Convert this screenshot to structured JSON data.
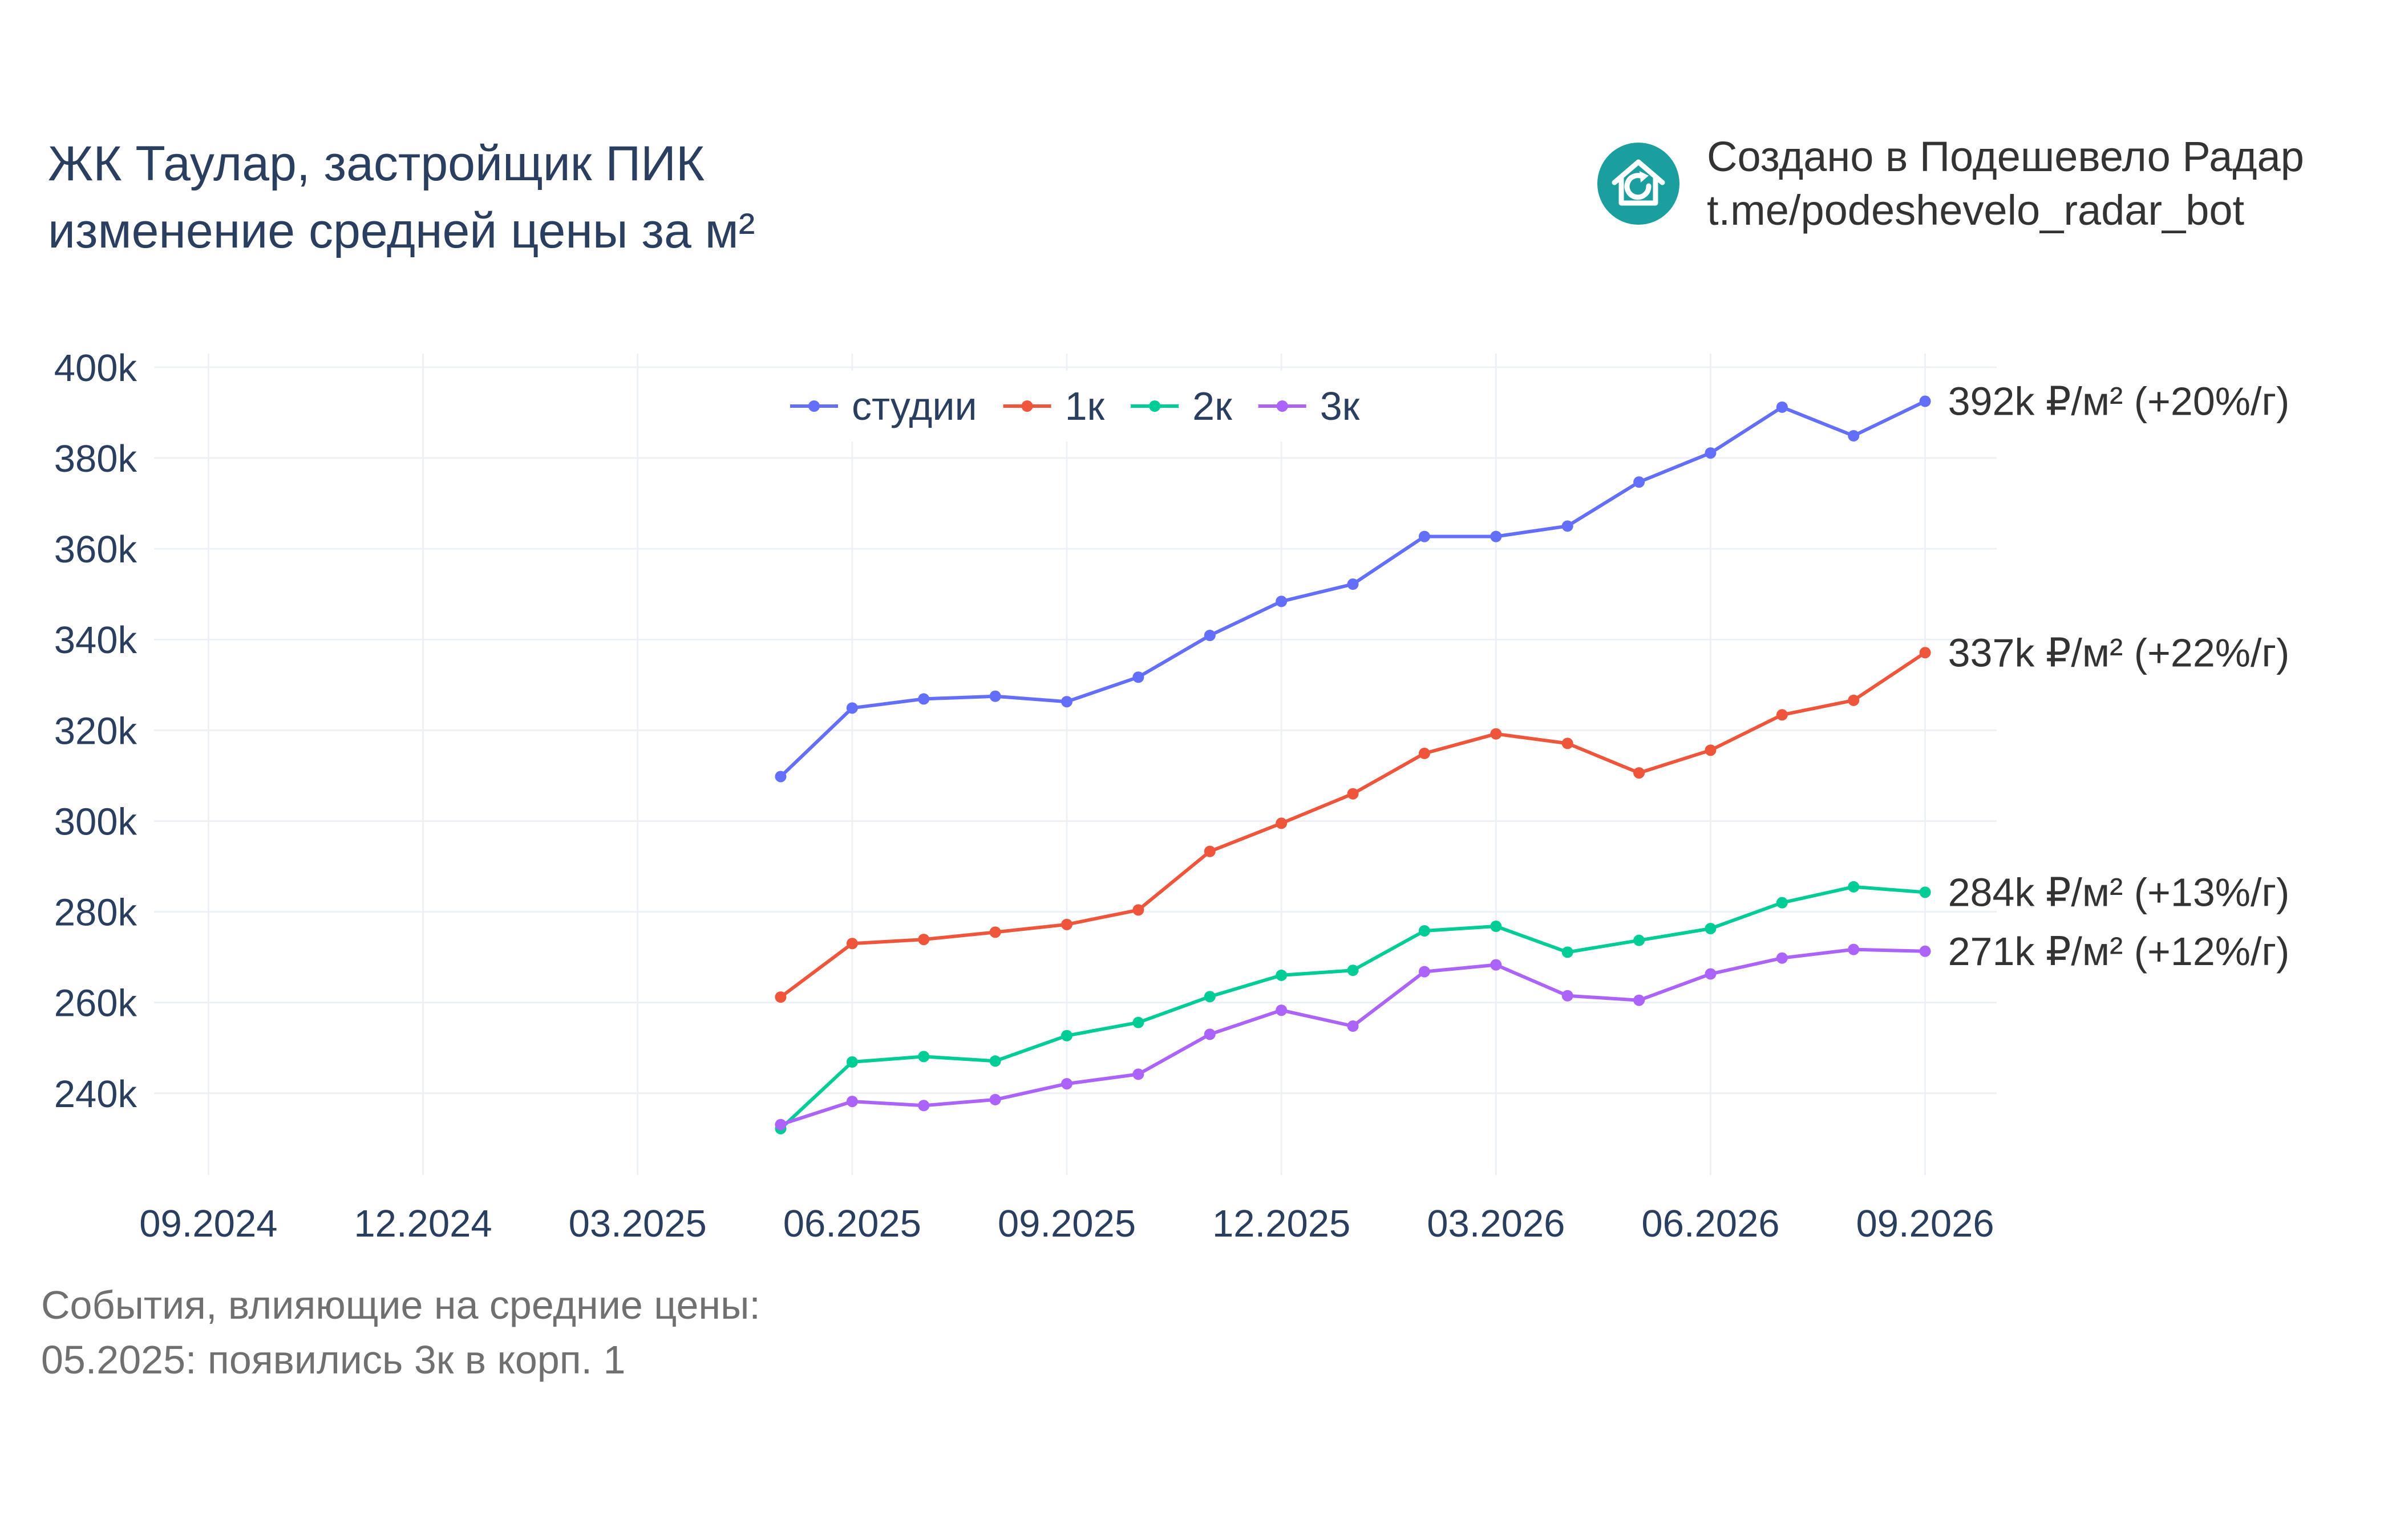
{
  "header": {
    "title_line1": "ЖК Таулар, застройщик ПИК",
    "title_line2": "изменение средней цены за м²"
  },
  "brand": {
    "line1": "Создано в Подешевело Радар",
    "line2": "t.me/podeshevelo_radar_bot",
    "logo_icon": "house-refresh-icon",
    "logo_color": "#1a9e9e"
  },
  "notes": {
    "line1": "События, влияющие на средние цены:",
    "line2": "05.2025: появились 3к в корп. 1"
  },
  "chart_data": {
    "type": "line",
    "x_ticks": [
      "09.2024",
      "12.2024",
      "03.2025",
      "06.2025",
      "09.2025",
      "12.2025",
      "03.2026",
      "06.2026",
      "09.2026"
    ],
    "y_ticks": [
      "240k",
      "260k",
      "280k",
      "300k",
      "320k",
      "340k",
      "360k",
      "380k",
      "400k"
    ],
    "x": [
      "05.2025",
      "06.2025",
      "07.2025",
      "08.2025",
      "09.2025",
      "10.2025",
      "11.2025",
      "12.2025",
      "01.2026",
      "02.2026",
      "03.2026",
      "04.2026",
      "05.2026",
      "06.2026",
      "07.2026",
      "08.2026",
      "09.2026"
    ],
    "xlim": [
      "08.2024",
      "10.2026"
    ],
    "ylim": [
      222000,
      403000
    ],
    "grid": true,
    "legend_position": "top-center",
    "series": [
      {
        "name": "студии",
        "color": "#636efa",
        "end_label": "392k ₽/м² (+20%/г)",
        "values": [
          309800,
          324900,
          326900,
          327500,
          326300,
          331700,
          340900,
          348400,
          352200,
          362700,
          362700,
          365000,
          374700,
          381100,
          391200,
          384900,
          392500
        ]
      },
      {
        "name": "1к",
        "color": "#ef553b",
        "end_label": "337k ₽/м² (+22%/г)",
        "values": [
          261200,
          273000,
          273900,
          275500,
          277200,
          280400,
          293300,
          299500,
          306000,
          314900,
          319200,
          317100,
          310600,
          315600,
          323400,
          326600,
          337100
        ]
      },
      {
        "name": "2к",
        "color": "#00cc96",
        "end_label": "284k ₽/м² (+13%/г)",
        "values": [
          232200,
          246900,
          248100,
          247100,
          252700,
          255600,
          261300,
          266000,
          267100,
          275800,
          276800,
          271100,
          273700,
          276300,
          282000,
          285500,
          284300
        ]
      },
      {
        "name": "3к",
        "color": "#ab63fa",
        "end_label": "271k ₽/м² (+12%/г)",
        "values": [
          233100,
          238200,
          237300,
          238600,
          242100,
          244200,
          253000,
          258300,
          254800,
          266800,
          268300,
          261500,
          260500,
          266300,
          269800,
          271700,
          271300
        ]
      }
    ]
  }
}
